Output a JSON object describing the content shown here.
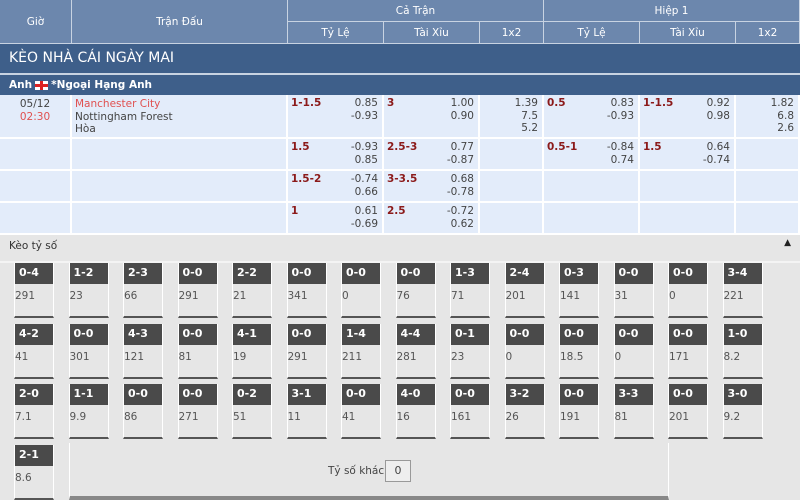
{
  "header": {
    "time": "Giờ",
    "match": "Trận Đấu",
    "full": "Cả Trận",
    "half": "Hiệp 1",
    "sub": [
      "Tỷ Lệ",
      "Tài Xỉu",
      "1x2",
      "Tỷ Lệ",
      "Tài Xỉu",
      "1x2"
    ]
  },
  "banner": "KÈO NHÀ CÁI NGÀY MAI",
  "league": {
    "country": "Anh",
    "name": "*Ngoại Hạng Anh"
  },
  "match": {
    "date": "05/12",
    "time": "02:30",
    "home": "Manchester City",
    "away": "Nottingham Forest",
    "draw": "Hòa"
  },
  "rows": [
    {
      "hdp": {
        "line": "1-1.5",
        "odds": [
          "0.85",
          "-0.93"
        ]
      },
      "ou": {
        "line": "3",
        "odds": [
          "1.00",
          "0.90"
        ]
      },
      "x12": [
        "1.39",
        "7.5",
        "5.2"
      ],
      "h_hdp": {
        "line": "0.5",
        "odds": [
          "0.83",
          "-0.93"
        ]
      },
      "h_ou": {
        "line": "1-1.5",
        "odds": [
          "0.92",
          "0.98"
        ]
      },
      "h_x12": [
        "1.82",
        "6.8",
        "2.6"
      ]
    },
    {
      "hdp": {
        "line": "1.5",
        "odds": [
          "-0.93",
          "0.85"
        ]
      },
      "ou": {
        "line": "2.5-3",
        "odds": [
          "0.77",
          "-0.87"
        ]
      },
      "h_hdp": {
        "line": "0.5-1",
        "odds": [
          "-0.84",
          "0.74"
        ]
      },
      "h_ou": {
        "line": "1.5",
        "odds": [
          "0.64",
          "-0.74"
        ]
      }
    },
    {
      "hdp": {
        "line": "1.5-2",
        "odds": [
          "-0.74",
          "0.66"
        ]
      },
      "ou": {
        "line": "3-3.5",
        "odds": [
          "0.68",
          "-0.78"
        ]
      }
    },
    {
      "hdp": {
        "line": "1",
        "odds": [
          "0.61",
          "-0.69"
        ]
      },
      "ou": {
        "line": "2.5",
        "odds": [
          "-0.72",
          "0.62"
        ]
      }
    }
  ],
  "correct_score": {
    "title": "Kèo tỷ số",
    "other_label": "Tỷ số khác",
    "other_value": "0",
    "items": [
      [
        "0-4",
        "291"
      ],
      [
        "1-2",
        "23"
      ],
      [
        "2-3",
        "66"
      ],
      [
        "0-0",
        "291"
      ],
      [
        "2-2",
        "21"
      ],
      [
        "0-0",
        "341"
      ],
      [
        "0-0",
        "0"
      ],
      [
        "0-0",
        "76"
      ],
      [
        "1-3",
        "71"
      ],
      [
        "2-4",
        "201"
      ],
      [
        "0-3",
        "141"
      ],
      [
        "0-0",
        "31"
      ],
      [
        "0-0",
        "0"
      ],
      [
        "3-4",
        "221"
      ],
      [
        "4-2",
        "41"
      ],
      [
        "0-0",
        "301"
      ],
      [
        "4-3",
        "121"
      ],
      [
        "0-0",
        "81"
      ],
      [
        "4-1",
        "19"
      ],
      [
        "0-0",
        "291"
      ],
      [
        "1-4",
        "211"
      ],
      [
        "4-4",
        "281"
      ],
      [
        "0-1",
        "23"
      ],
      [
        "0-0",
        "0"
      ],
      [
        "0-0",
        "18.5"
      ],
      [
        "0-0",
        "0"
      ],
      [
        "0-0",
        "171"
      ],
      [
        "1-0",
        "8.2"
      ],
      [
        "2-0",
        "7.1"
      ],
      [
        "1-1",
        "9.9"
      ],
      [
        "0-0",
        "86"
      ],
      [
        "0-0",
        "271"
      ],
      [
        "0-2",
        "51"
      ],
      [
        "3-1",
        "11"
      ],
      [
        "0-0",
        "41"
      ],
      [
        "4-0",
        "16"
      ],
      [
        "0-0",
        "161"
      ],
      [
        "3-2",
        "26"
      ],
      [
        "0-0",
        "191"
      ],
      [
        "3-3",
        "81"
      ],
      [
        "0-0",
        "201"
      ],
      [
        "3-0",
        "9.2"
      ],
      [
        "2-1",
        "8.6"
      ]
    ]
  }
}
